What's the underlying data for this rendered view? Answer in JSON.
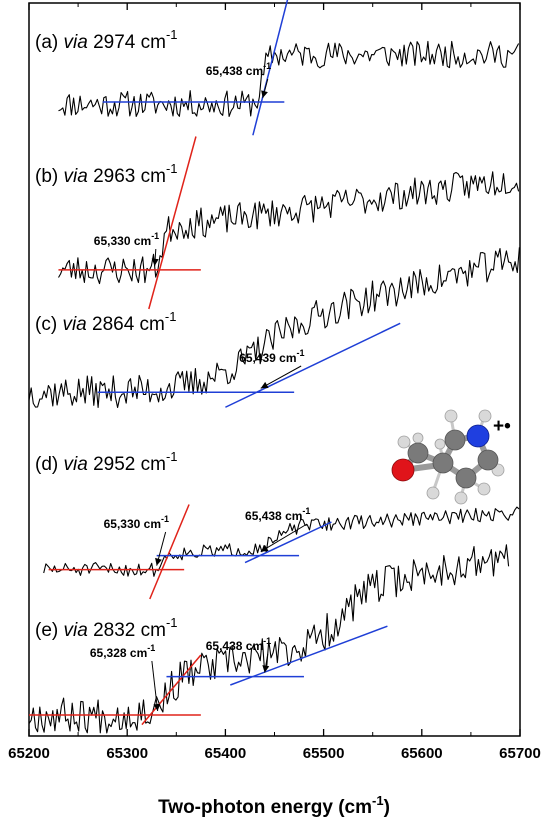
{
  "chart_data": {
    "type": "line",
    "xlabel": "Two-photon energy (cm",
    "xlabel_sup": "-1",
    "xlabel_end": ")",
    "xlim": [
      65200,
      65700
    ],
    "x_ticks": [
      "65200",
      "65300",
      "65400",
      "65500",
      "65600",
      "65700"
    ],
    "grid": false,
    "panels": [
      {
        "label_prefix": "(a)",
        "label_via": "via",
        "label_value": "2974 cm",
        "label_sup": "-1",
        "x_start": 65230,
        "x_end": 65700,
        "base": 0.18,
        "step_at": 65438,
        "step_width": 10,
        "step_height": 0.52,
        "slope_after": 0.0,
        "noise": 0.14,
        "seed": 11,
        "fits": [
          {
            "color": "#1f3fd6",
            "x1": 65275,
            "y1": 0.2,
            "x2": 65460,
            "y2": 0.2
          },
          {
            "color": "#1f3fd6",
            "x1": 65428,
            "y1": -0.15,
            "x2": 65470,
            "y2": 1.55
          }
        ],
        "annotations": [
          {
            "text": "65,438 cm",
            "sup": "-1",
            "x": 65438,
            "tx": 65380
          }
        ]
      },
      {
        "label_prefix": "(b)",
        "label_via": "via",
        "label_value": "2963 cm",
        "label_sup": "-1",
        "x_start": 65230,
        "x_end": 65700,
        "base": 0.14,
        "step_at": 65335,
        "step_width": 10,
        "step_height": 0.36,
        "slope_after": 0.0012,
        "noise": 0.13,
        "seed": 23,
        "fits": [
          {
            "color": "#e0231a",
            "x1": 65230,
            "y1": 0.14,
            "x2": 65375,
            "y2": 0.14
          },
          {
            "color": "#e0231a",
            "x1": 65322,
            "y1": -0.2,
            "x2": 65370,
            "y2": 1.3
          }
        ],
        "annotations": [
          {
            "text": "65,330 cm",
            "sup": "-1",
            "x": 65328,
            "tx": 65266
          }
        ]
      },
      {
        "label_prefix": "(c)",
        "label_via": "via",
        "label_value": "2864 cm",
        "label_sup": "-1",
        "x_start": 65200,
        "x_end": 65700,
        "base": 0.18,
        "step_at": 65420,
        "step_width": 120,
        "step_height": 0.55,
        "slope_after": 0.0022,
        "noise": 0.14,
        "seed": 37,
        "fits": [
          {
            "color": "#1f3fd6",
            "x1": 65270,
            "y1": 0.18,
            "x2": 65470,
            "y2": 0.18
          },
          {
            "color": "#1f3fd6",
            "x1": 65400,
            "y1": 0.05,
            "x2": 65578,
            "y2": 0.78
          }
        ],
        "annotations": [
          {
            "text": "65,439 cm",
            "sup": "-1",
            "x": 65436,
            "tx": 65414
          }
        ]
      },
      {
        "label_prefix": "(d)",
        "label_via": "via",
        "label_value": "2952 cm",
        "label_sup": "-1",
        "x_start": 65215,
        "x_end": 65700,
        "base": 0.12,
        "step_at": 65336,
        "step_width": 8,
        "step_height": 0.22,
        "step2_at": 65455,
        "step2_width": 30,
        "step2_height": 0.3,
        "slope_after": 0.0008,
        "noise": 0.1,
        "seed": 51,
        "fits": [
          {
            "color": "#e0231a",
            "x1": 65220,
            "y1": 0.12,
            "x2": 65358,
            "y2": 0.12
          },
          {
            "color": "#e0231a",
            "x1": 65323,
            "y1": -0.3,
            "x2": 65363,
            "y2": 1.05
          },
          {
            "color": "#1f3fd6",
            "x1": 65330,
            "y1": 0.32,
            "x2": 65475,
            "y2": 0.32
          },
          {
            "color": "#1f3fd6",
            "x1": 65420,
            "y1": 0.22,
            "x2": 65508,
            "y2": 0.8
          }
        ],
        "annotations": [
          {
            "text": "65,330 cm",
            "sup": "-1",
            "x": 65330,
            "tx": 65276
          },
          {
            "text": "65,438 cm",
            "sup": "-1",
            "x": 65436,
            "tx": 65420
          }
        ]
      },
      {
        "label_prefix": "(e)",
        "label_via": "via",
        "label_value": "2832 cm",
        "label_sup": "-1",
        "x_start": 65200,
        "x_end": 65690,
        "base": 0.1,
        "step_at": 65340,
        "step_width": 40,
        "step_height": 0.34,
        "step2_at": 65520,
        "step2_width": 60,
        "step2_height": 0.45,
        "slope_after": 0.0015,
        "noise": 0.15,
        "seed": 67,
        "fits": [
          {
            "color": "#e0231a",
            "x1": 65200,
            "y1": 0.1,
            "x2": 65375,
            "y2": 0.1
          },
          {
            "color": "#e0231a",
            "x1": 65315,
            "y1": 0.02,
            "x2": 65375,
            "y2": 0.6
          },
          {
            "color": "#1f3fd6",
            "x1": 65340,
            "y1": 0.42,
            "x2": 65480,
            "y2": 0.42
          },
          {
            "color": "#1f3fd6",
            "x1": 65405,
            "y1": 0.35,
            "x2": 65565,
            "y2": 0.84
          }
        ],
        "annotations": [
          {
            "text": "65,328 cm",
            "sup": "-1",
            "x": 65331,
            "tx": 65262
          },
          {
            "text": "65,438 cm",
            "sup": "-1",
            "x": 65440,
            "tx": 65380
          }
        ]
      }
    ],
    "inset": {
      "charge_text": "+•"
    }
  }
}
